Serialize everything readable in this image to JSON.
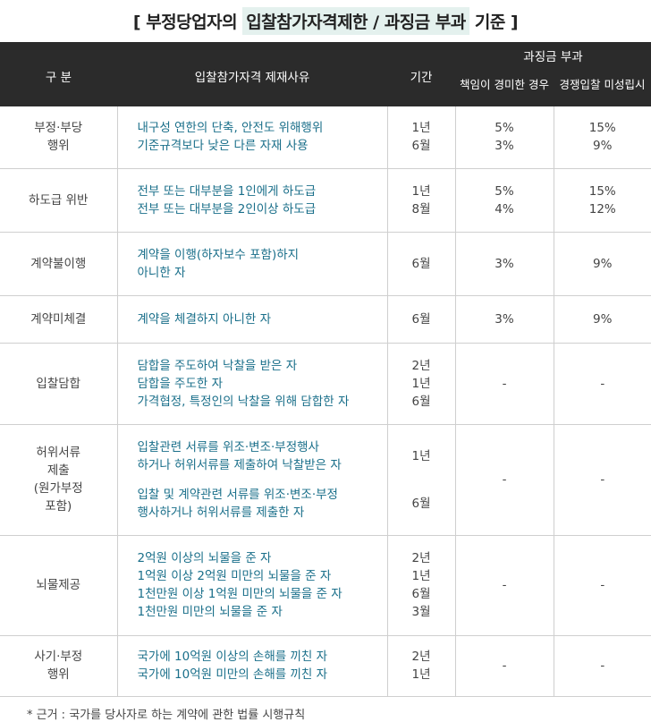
{
  "title": {
    "prefix": "[ 부정당업자의 ",
    "highlight": "입찰참가자격제한 / 과징금 부과",
    "suffix": " 기준 ]"
  },
  "header": {
    "category": "구 분",
    "reason": "입찰참가자격 제재사유",
    "period": "기간",
    "penalty": "과징금 부과",
    "penalty_a": [
      "책임이",
      "경미한 경우"
    ],
    "penalty_b": [
      "경쟁입찰",
      "미성립시"
    ]
  },
  "rows": [
    {
      "height": 69,
      "category": [
        "부정·부당",
        "행위"
      ],
      "reasons": [
        "내구성 연한의 단축, 안전도 위해행위",
        "기준규격보다 낮은 다른 자재 사용"
      ],
      "period": [
        "1년",
        "6월"
      ],
      "a": [
        "5%",
        "3%"
      ],
      "b": [
        "15%",
        "9%"
      ]
    },
    {
      "height": 71,
      "category": [
        "하도급 위반"
      ],
      "reasons": [
        "전부 또는 대부분을 1인에게 하도급",
        "전부 또는 대부분을 2인이상 하도급"
      ],
      "period": [
        "1년",
        "8월"
      ],
      "a": [
        "5%",
        "4%"
      ],
      "b": [
        "15%",
        "12%"
      ]
    },
    {
      "height": 71,
      "category": [
        "계약불이행"
      ],
      "reasons": [
        "계약을 이행(하자보수 포함)하지",
        "아니한 자"
      ],
      "period": [
        "6월"
      ],
      "a": [
        "3%"
      ],
      "b": [
        "9%"
      ]
    },
    {
      "height": 53,
      "category": [
        "계약미체결"
      ],
      "reasons": [
        "계약을 체결하지 아니한 자"
      ],
      "period": [
        "6월"
      ],
      "a": [
        "3%"
      ],
      "b": [
        "9%"
      ]
    },
    {
      "height": 91,
      "category": [
        "입찰담합"
      ],
      "reasons": [
        "담합을 주도하여 낙찰을 받은 자",
        "담합을 주도한 자",
        "가격협정, 특정인의 낙찰을 위해 담합한 자"
      ],
      "period": [
        "2년",
        "1년",
        "6월"
      ],
      "a": [
        "-"
      ],
      "b": [
        "-"
      ]
    },
    {
      "height": 124,
      "category": [
        "허위서류",
        "제출",
        "(원가부정",
        "포함)"
      ],
      "reasons_groups": [
        [
          "입찰관련 서류를 위조·변조·부정행사",
          "하거나 허위서류를 제출하여 낙찰받은 자"
        ],
        [
          "입찰 및 계약관련 서류를 위조·변조·부정",
          "행사하거나 허위서류를 제출한 자"
        ]
      ],
      "period_groups": [
        [
          "1년"
        ],
        [
          "6월"
        ]
      ],
      "a": [
        "-"
      ],
      "b": [
        "-"
      ]
    },
    {
      "height": 112,
      "category": [
        "뇌물제공"
      ],
      "reasons": [
        "2억원 이상의 뇌물을 준 자",
        "1억원 이상 2억원 미만의 뇌물을 준 자",
        "1천만원 이상 1억원 미만의 뇌물을 준 자",
        "1천만원 미만의 뇌물을 준 자"
      ],
      "period": [
        "2년",
        "1년",
        "6월",
        "3월"
      ],
      "a": [
        "-"
      ],
      "b": [
        "-"
      ]
    },
    {
      "height": 68,
      "category": [
        "사기·부정",
        "행위"
      ],
      "reasons": [
        "국가에 10억원 이상의 손해를 끼친 자",
        "국가에 10억원 미만의 손해를 끼친 자"
      ],
      "period": [
        "2년",
        "1년"
      ],
      "a": [
        "-"
      ],
      "b": [
        "-"
      ]
    }
  ],
  "footnote": "* 근거 : 국가를 당사자로 하는 계약에 관한 법률 시행규칙"
}
